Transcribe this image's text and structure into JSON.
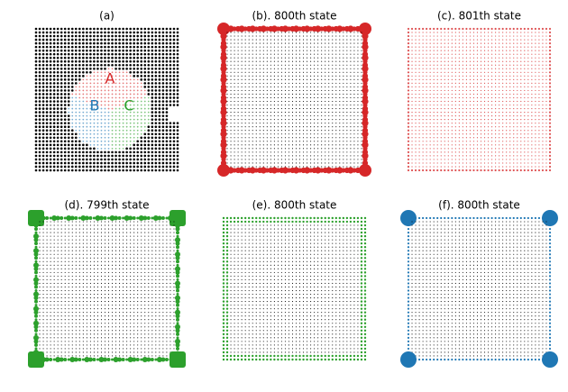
{
  "panels": [
    {
      "title": "(a)",
      "labels": [
        "A",
        "B",
        "C"
      ],
      "label_colors": [
        "#d62728",
        "#1f77b4",
        "#2ca02c"
      ]
    },
    {
      "title": "(b). 800th state",
      "color": "#d62728"
    },
    {
      "title": "(c). 801th state",
      "color": "#d62728"
    },
    {
      "title": "(d). 799th state",
      "color": "#2ca02c"
    },
    {
      "title": "(e). 800th state",
      "color": "#2ca02c"
    },
    {
      "title": "(f). 800th state",
      "color": "#1f77b4"
    }
  ]
}
